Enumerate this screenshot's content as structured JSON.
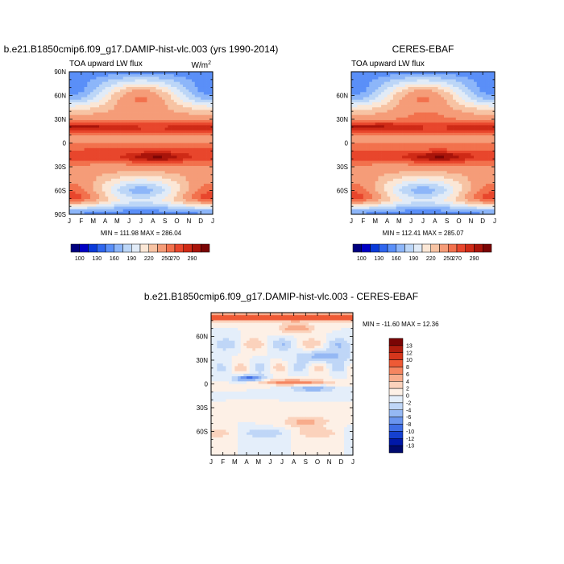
{
  "chart_data": [
    {
      "type": "heatmap",
      "title": "b.e21.B1850cmip6.f09_g17.DAMIP-hist-vlc.003 (yrs 1990-2014)",
      "subtitle_left": "TOA upward LW flux",
      "units": "W/m",
      "units_sup": "2",
      "x_ticks": [
        "J",
        "F",
        "M",
        "A",
        "M",
        "J",
        "J",
        "A",
        "S",
        "O",
        "N",
        "D",
        "J"
      ],
      "y_ticks": [
        "90N",
        "60N",
        "30N",
        "0",
        "30S",
        "60S",
        "90S"
      ],
      "min_max": "MIN = 111.98  MAX = 286.04",
      "colorbar_labels": [
        "100",
        "130",
        "160",
        "190",
        "220",
        "250",
        "270",
        "290"
      ]
    },
    {
      "type": "heatmap",
      "title": "CERES-EBAF",
      "subtitle_left": "TOA upward LW flux",
      "x_ticks": [
        "J",
        "F",
        "M",
        "A",
        "M",
        "J",
        "J",
        "A",
        "S",
        "O",
        "N",
        "D",
        "J"
      ],
      "y_ticks": [
        "60N",
        "30N",
        "0",
        "30S",
        "60S"
      ],
      "min_max": "MIN = 112.41  MAX = 285.07",
      "colorbar_labels": [
        "100",
        "130",
        "160",
        "190",
        "220",
        "250",
        "270",
        "290"
      ]
    },
    {
      "type": "heatmap",
      "title": "b.e21.B1850cmip6.f09_g17.DAMIP-hist-vlc.003 - CERES-EBAF",
      "x_ticks": [
        "J",
        "F",
        "M",
        "A",
        "M",
        "J",
        "J",
        "A",
        "S",
        "O",
        "N",
        "D",
        "J"
      ],
      "y_ticks": [
        "60N",
        "30N",
        "0",
        "30S",
        "60S"
      ],
      "min_max": "MIN = -11.60  MAX =  12.36",
      "colorbar_labels": [
        "13",
        "12",
        "10",
        "8",
        "6",
        "4",
        "2",
        "0",
        "-2",
        "-4",
        "-6",
        "-8",
        "-10",
        "-12",
        "-13"
      ]
    }
  ],
  "colors": {
    "abs_scale": [
      "#00007f",
      "#0000c4",
      "#0a3ad9",
      "#2f66ee",
      "#5a8ff8",
      "#8db6f9",
      "#bcd6f7",
      "#e1ebf7",
      "#fbe7d6",
      "#f7c3a3",
      "#f59c78",
      "#f2714d",
      "#e8462c",
      "#cf2a16",
      "#a9140a",
      "#7a0505"
    ],
    "diff_scale": [
      "#7a0505",
      "#b01d0e",
      "#d6361c",
      "#ee5a35",
      "#f58560",
      "#f8ac8c",
      "#fbd2bc",
      "#fdf0e6",
      "#e4eefa",
      "#bfd6f7",
      "#95b8f4",
      "#6a95ef",
      "#3f6ee6",
      "#1540d0",
      "#0018a8",
      "#000a6e"
    ]
  }
}
